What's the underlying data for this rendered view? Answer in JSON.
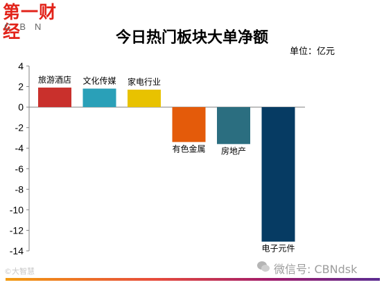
{
  "branding": {
    "logo_text": "第一财经",
    "logo_sub": "CBN",
    "watermark_left": "©大智慧",
    "watermark_right": "微信号: CBNdsk"
  },
  "chart_data": {
    "type": "bar",
    "title": "今日热门板块大单净额",
    "unit_label": "单位：亿元",
    "categories": [
      "旅游酒店",
      "文化传媒",
      "家电行业",
      "有色金属",
      "房地产",
      "电子元件"
    ],
    "values": [
      1.9,
      1.8,
      1.7,
      -3.4,
      -3.6,
      -13.1
    ],
    "colors": [
      "#c9302c",
      "#2aa0b8",
      "#e8c200",
      "#e45b0a",
      "#2b6e80",
      "#063b63"
    ],
    "ylim": [
      -14,
      4
    ],
    "yticks": [
      4,
      2,
      0,
      -2,
      -4,
      -6,
      -8,
      -10,
      -12,
      -14
    ],
    "grid": false,
    "legend": "none"
  },
  "colors": {
    "brand_red": "#e2231a"
  }
}
